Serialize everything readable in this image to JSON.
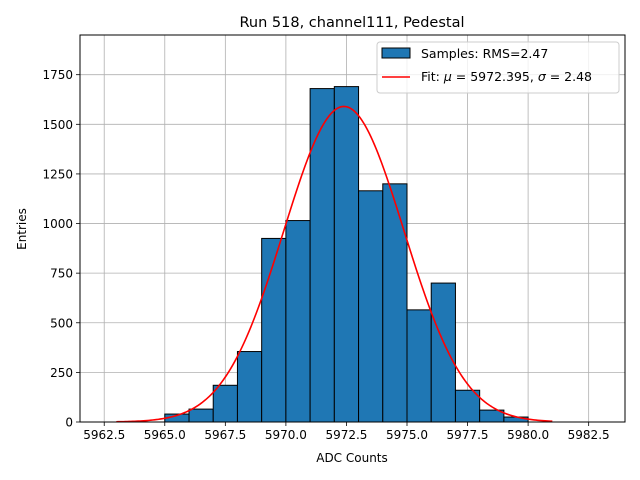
{
  "chart_data": {
    "type": "bar",
    "title": "Run 518, channel111, Pedestal",
    "xlabel": "ADC Counts",
    "ylabel": "Entries",
    "xlim": [
      5961.5,
      5984.0
    ],
    "ylim": [
      0,
      1950
    ],
    "grid": true,
    "legend_placement": "top-right",
    "x_ticks": [
      5962.5,
      5965.0,
      5967.5,
      5970.0,
      5972.5,
      5975.0,
      5977.5,
      5980.0,
      5982.5
    ],
    "x_tick_labels": [
      "5962.5",
      "5965.0",
      "5967.5",
      "5970.0",
      "5972.5",
      "5975.0",
      "5977.5",
      "5980.0",
      "5982.5"
    ],
    "y_ticks": [
      0,
      250,
      500,
      750,
      1000,
      1250,
      1500,
      1750
    ],
    "y_tick_labels": [
      "0",
      "250",
      "500",
      "750",
      "1000",
      "1250",
      "1500",
      "1750"
    ],
    "series": [
      {
        "name": "Samples: RMS=2.47",
        "kind": "histogram",
        "color": "#1f77b4",
        "edge_color": "#000000",
        "bin_edges": [
          5965,
          5966,
          5967,
          5968,
          5969,
          5970,
          5971,
          5972,
          5973,
          5974,
          5975,
          5976,
          5977,
          5978,
          5979,
          5980
        ],
        "values": [
          40,
          65,
          185,
          355,
          925,
          1015,
          1680,
          1690,
          1165,
          1200,
          565,
          700,
          160,
          60,
          25
        ]
      },
      {
        "name": "Fit: μ = 5972.395, σ = 2.48",
        "legend_prefix": "Fit: ",
        "legend_mu_symbol": "μ",
        "legend_mu_text": " = 5972.395, ",
        "legend_sigma_symbol": "σ",
        "legend_sigma_text": " = 2.48",
        "kind": "gaussian",
        "color": "#ff0000",
        "mu": 5972.395,
        "sigma": 2.48,
        "amplitude": 1590,
        "x_range": [
          5963,
          5981
        ]
      }
    ]
  }
}
